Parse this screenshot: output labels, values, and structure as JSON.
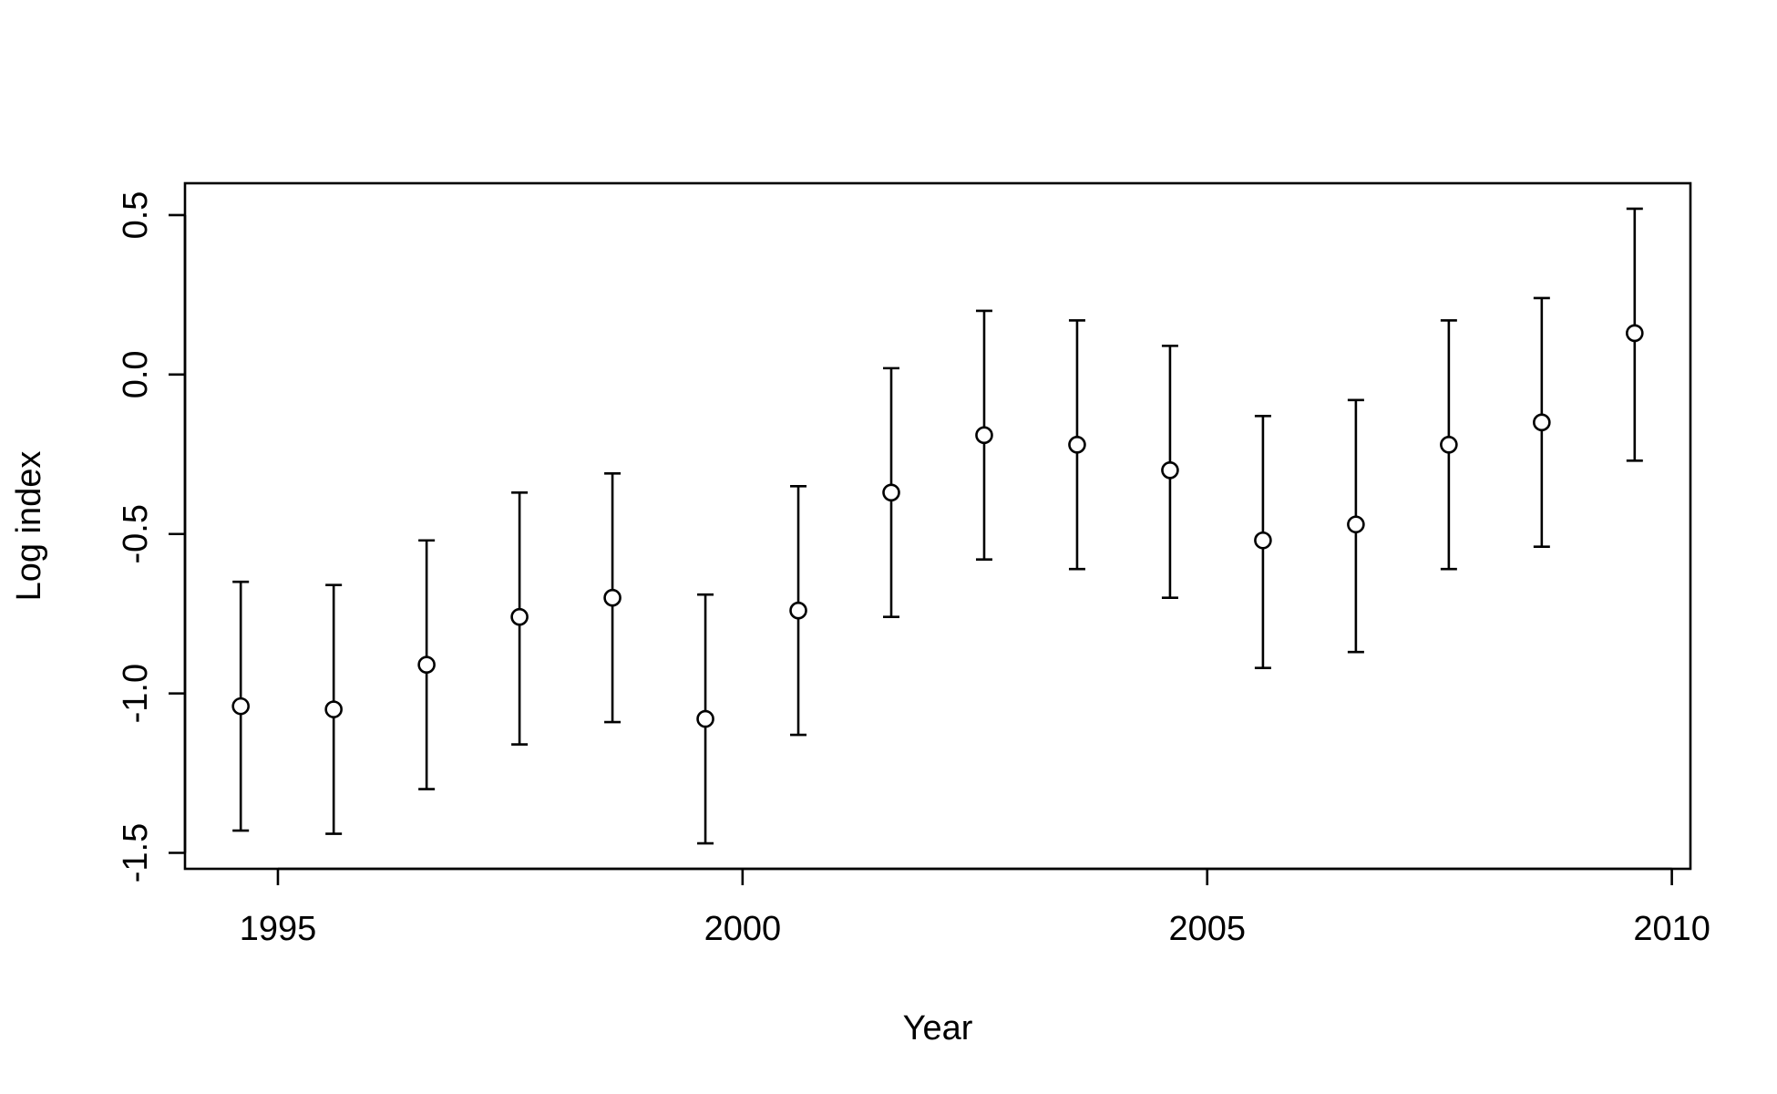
{
  "chart_data": {
    "type": "scatter",
    "title": "",
    "xlabel": "Year",
    "ylabel": "Log index",
    "xlim": [
      1994,
      2010.2
    ],
    "ylim": [
      -1.55,
      0.6
    ],
    "x_ticks": [
      1995,
      2000,
      2005,
      2010
    ],
    "x_tick_labels": [
      "1995",
      "2000",
      "2005",
      "2010"
    ],
    "y_ticks": [
      -1.5,
      -1.0,
      -0.5,
      0.0,
      0.5
    ],
    "y_tick_labels": [
      "-1.5",
      "-1.0",
      "-0.5",
      "0.0",
      "0.5"
    ],
    "grid": false,
    "legend": "none",
    "series": [
      {
        "x": [
          1994.6,
          1995.6,
          1996.6,
          1997.6,
          1998.6,
          1999.6,
          2000.6,
          2001.6,
          2002.6,
          2003.6,
          2004.6,
          2005.6,
          2006.6,
          2007.6,
          2008.6,
          2009.6
        ],
        "values": [
          -1.04,
          -1.05,
          -0.91,
          -0.76,
          -0.7,
          -1.08,
          -0.74,
          -0.37,
          -0.19,
          -0.22,
          -0.3,
          -0.52,
          -0.47,
          -0.22,
          -0.15,
          0.13
        ],
        "lower": [
          -1.43,
          -1.44,
          -1.3,
          -1.16,
          -1.09,
          -1.47,
          -1.13,
          -0.76,
          -0.58,
          -0.61,
          -0.7,
          -0.92,
          -0.87,
          -0.61,
          -0.54,
          -0.27
        ],
        "upper": [
          -0.65,
          -0.66,
          -0.52,
          -0.37,
          -0.31,
          -0.69,
          -0.35,
          0.02,
          0.2,
          0.17,
          0.09,
          -0.13,
          -0.08,
          0.17,
          0.24,
          0.52
        ]
      }
    ]
  }
}
